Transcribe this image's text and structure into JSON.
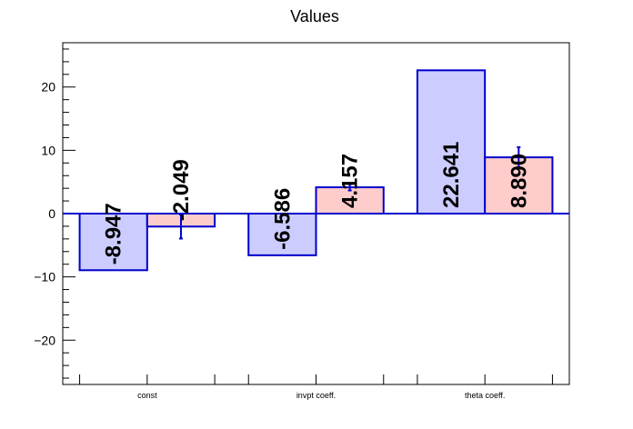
{
  "chart_data": {
    "type": "bar",
    "title": "Values",
    "xlabel": "",
    "ylabel": "",
    "categories": [
      "const",
      "invpt coeff.",
      "theta coeff."
    ],
    "ylim": [
      -27,
      27
    ],
    "yticks": [
      -20,
      -10,
      0,
      10,
      20
    ],
    "grid": false,
    "series": [
      {
        "values": [
          -8.947,
          -6.586,
          22.641
        ],
        "labels": [
          "-8.947",
          "-6.586",
          "22.641"
        ],
        "errors": [
          0,
          0,
          0
        ],
        "fill": "#ccccff",
        "stroke": "#0000cc"
      },
      {
        "values": [
          -2.049,
          4.157,
          8.89
        ],
        "labels": [
          "-2.049",
          "4.157",
          "8.890"
        ],
        "errors": [
          1.9,
          0.5,
          1.6
        ],
        "fill": "#ffcccc",
        "stroke": "#0000cc"
      }
    ],
    "zero_line_color": "#0000cc"
  }
}
